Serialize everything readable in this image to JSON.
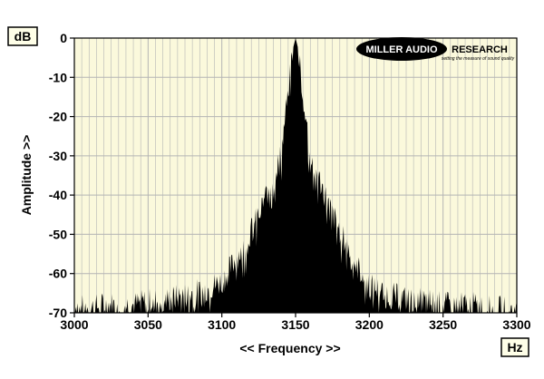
{
  "chart_data": {
    "type": "area",
    "xlabel": "<< Frequency >>",
    "ylabel": "Amplitude >>",
    "y_unit": "dB",
    "x_unit": "Hz",
    "xlim": [
      3000,
      3300
    ],
    "ylim": [
      -70,
      0
    ],
    "x_ticks": [
      "3000",
      "3050",
      "3100",
      "3150",
      "3200",
      "3250",
      "3300"
    ],
    "y_ticks": [
      "0",
      "-10",
      "-20",
      "-30",
      "-40",
      "-50",
      "-60",
      "-70"
    ],
    "grid": true,
    "series": [
      {
        "x": [
          3000,
          3010,
          3020,
          3030,
          3040,
          3050,
          3060,
          3070,
          3080,
          3090,
          3100,
          3105,
          3110,
          3115,
          3120,
          3125,
          3130,
          3135,
          3140,
          3143,
          3146,
          3148,
          3150,
          3152,
          3154,
          3157,
          3160,
          3165,
          3170,
          3175,
          3180,
          3185,
          3190,
          3195,
          3200,
          3210,
          3220,
          3230,
          3240,
          3250,
          3260,
          3270,
          3280,
          3290,
          3300
        ],
        "values": [
          -68,
          -69,
          -68,
          -68,
          -68,
          -67,
          -67,
          -66,
          -65,
          -64,
          -62,
          -59,
          -56,
          -53,
          -49,
          -45,
          -40,
          -35,
          -30,
          -20,
          -10,
          -3,
          0,
          -3,
          -10,
          -20,
          -30,
          -35,
          -40,
          -45,
          -49,
          -53,
          -57,
          -60,
          -63,
          -65,
          -66,
          -67,
          -67,
          -68,
          -68,
          -68,
          -69,
          -69,
          -70
        ]
      }
    ],
    "background_color": "#fbf9dc",
    "fill_color": "#000000",
    "grid_color": "#b4b4b4"
  },
  "logo": {
    "name": "MILLER AUDIO RESEARCH",
    "name_part1": "MILLER AUDIO",
    "name_part2": "RESEARCH",
    "tagline": "setting the measure of sound quality"
  }
}
